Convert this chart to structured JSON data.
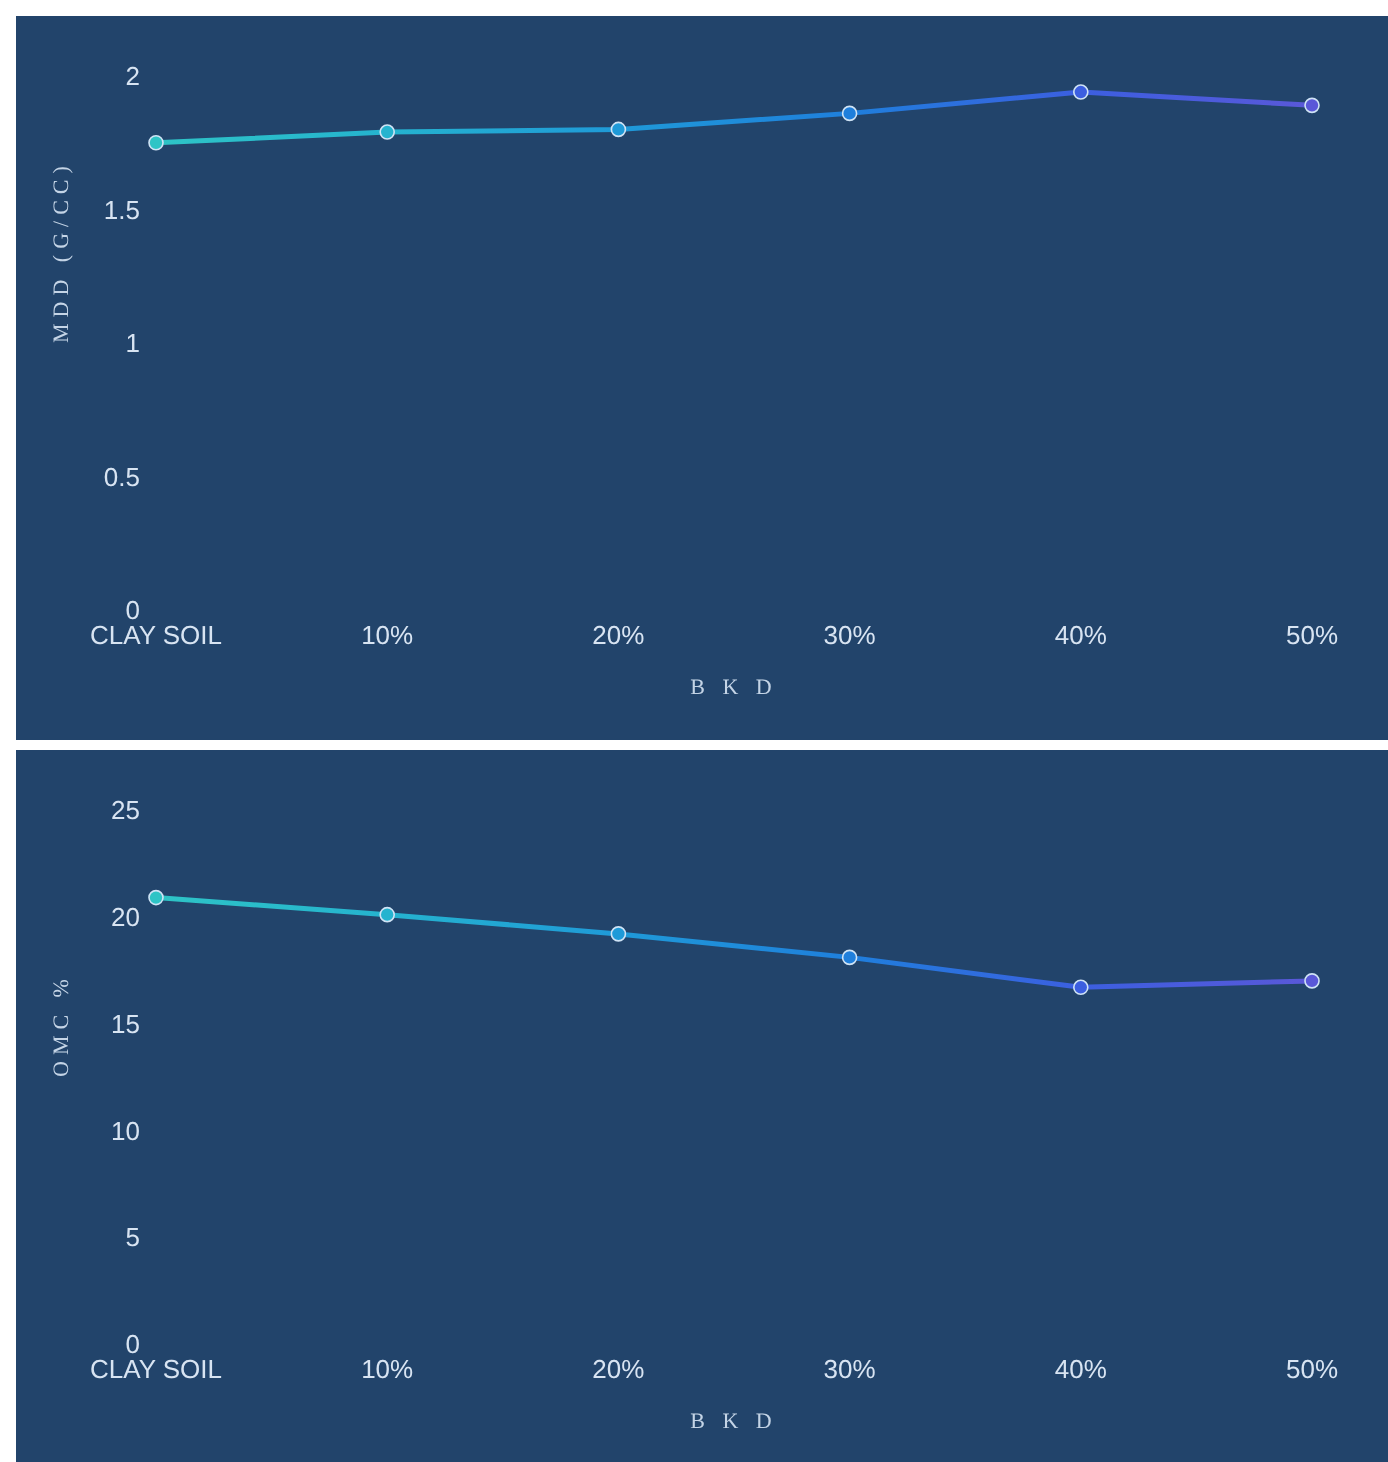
{
  "chart_data": [
    {
      "type": "line",
      "ylabel": "MDD (G/CC)",
      "xlabel": "B K D",
      "categories": [
        "CLAY SOIL",
        "10%",
        "20%",
        "30%",
        "40%",
        "50%"
      ],
      "series": [
        {
          "colors": [
            "#2ec4c6",
            "#25b3cf",
            "#1f9ad8",
            "#1f7fdc",
            "#3c5fe0",
            "#5a58d8"
          ],
          "values": [
            1.75,
            1.79,
            1.8,
            1.86,
            1.94,
            1.89
          ]
        }
      ],
      "ylim": [
        0,
        2
      ],
      "yticks": [
        0,
        0.5,
        1,
        1.5,
        2
      ],
      "marker": "circle",
      "line_style": "solid",
      "grid": false,
      "legend": false
    },
    {
      "type": "line",
      "ylabel": "OMC %",
      "xlabel": "B K D",
      "categories": [
        "CLAY SOIL",
        "10%",
        "20%",
        "30%",
        "40%",
        "50%"
      ],
      "series": [
        {
          "colors": [
            "#2ec4c6",
            "#25b3cf",
            "#1f9ad8",
            "#1f7fdc",
            "#3c5fe0",
            "#5a58d8"
          ],
          "values": [
            20.9,
            20.1,
            19.2,
            18.1,
            16.7,
            17.0
          ]
        }
      ],
      "ylim": [
        0,
        25
      ],
      "yticks": [
        0,
        5,
        10,
        15,
        20,
        25
      ],
      "marker": "circle",
      "line_style": "solid",
      "grid": false,
      "legend": false
    }
  ]
}
